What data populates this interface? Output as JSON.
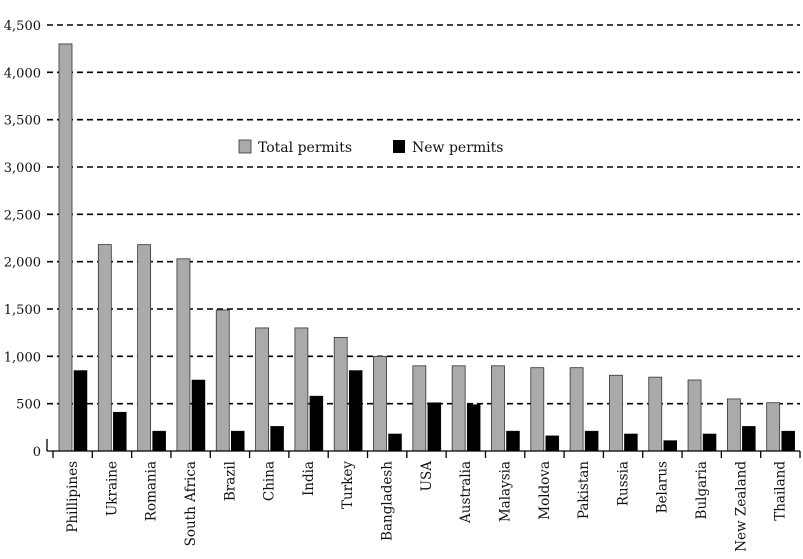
{
  "chart_data": {
    "type": "bar",
    "categories": [
      "Phillipines",
      "Ukraine",
      "Romania",
      "South Africa",
      "Brazil",
      "China",
      "India",
      "Turkey",
      "Bangladesh",
      "USA",
      "Australia",
      "Malaysia",
      "Moldova",
      "Pakistan",
      "Russia",
      "Belarus",
      "Bulgaria",
      "New Zealand",
      "Thailand"
    ],
    "series": [
      {
        "name": "Total permits",
        "color": "#aaaaaa",
        "values": [
          4300,
          2180,
          2180,
          2030,
          1490,
          1300,
          1300,
          1200,
          1000,
          900,
          900,
          900,
          880,
          880,
          800,
          780,
          750,
          550,
          510
        ]
      },
      {
        "name": "New permits",
        "color": "#000000",
        "values": [
          850,
          410,
          210,
          750,
          210,
          260,
          580,
          850,
          180,
          510,
          490,
          210,
          160,
          210,
          180,
          110,
          180,
          260,
          210
        ]
      }
    ],
    "y_ticks": [
      "0",
      "500",
      "1,000",
      "1,500",
      "2,000",
      "2,500",
      "3,000",
      "3,500",
      "4,000",
      "4,500"
    ],
    "ylim": [
      0,
      4500
    ],
    "grid": "horizontal dashed",
    "legend_position": "upper-center",
    "title": "",
    "xlabel": "",
    "ylabel": ""
  }
}
